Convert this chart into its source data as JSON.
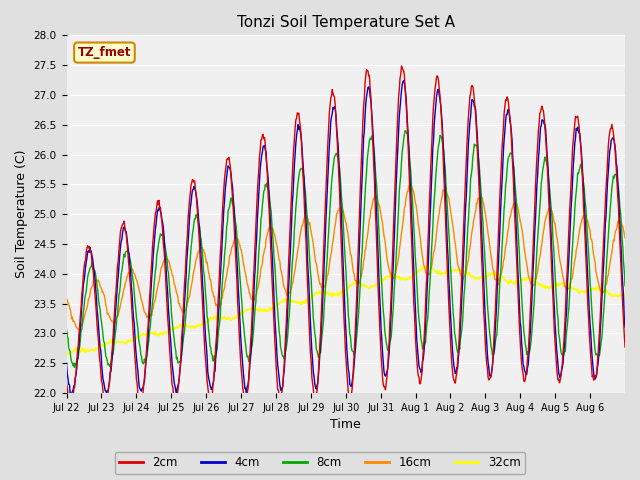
{
  "title": "Tonzi Soil Temperature Set A",
  "xlabel": "Time",
  "ylabel": "Soil Temperature (C)",
  "ylim": [
    22.0,
    28.0
  ],
  "background_color": "#e0e0e0",
  "plot_bg_color": "#f0f0f0",
  "series": {
    "2cm": {
      "color": "#dd0000",
      "linewidth": 1.0
    },
    "4cm": {
      "color": "#0000cc",
      "linewidth": 1.0
    },
    "8cm": {
      "color": "#00aa00",
      "linewidth": 1.0
    },
    "16cm": {
      "color": "#ff8800",
      "linewidth": 1.0
    },
    "32cm": {
      "color": "#ffff00",
      "linewidth": 1.2
    }
  },
  "xtick_labels": [
    "Jul 22",
    "Jul 23",
    "Jul 24",
    "Jul 25",
    "Jul 26",
    "Jul 27",
    "Jul 28",
    "Jul 29",
    "Jul 30",
    "Jul 31",
    "Aug 1",
    "Aug 2",
    "Aug 3",
    "Aug 4",
    "Aug 5",
    "Aug 6"
  ],
  "legend_label": "TZ_fmet",
  "legend_bg": "#ffffcc",
  "legend_edge": "#cc8800"
}
